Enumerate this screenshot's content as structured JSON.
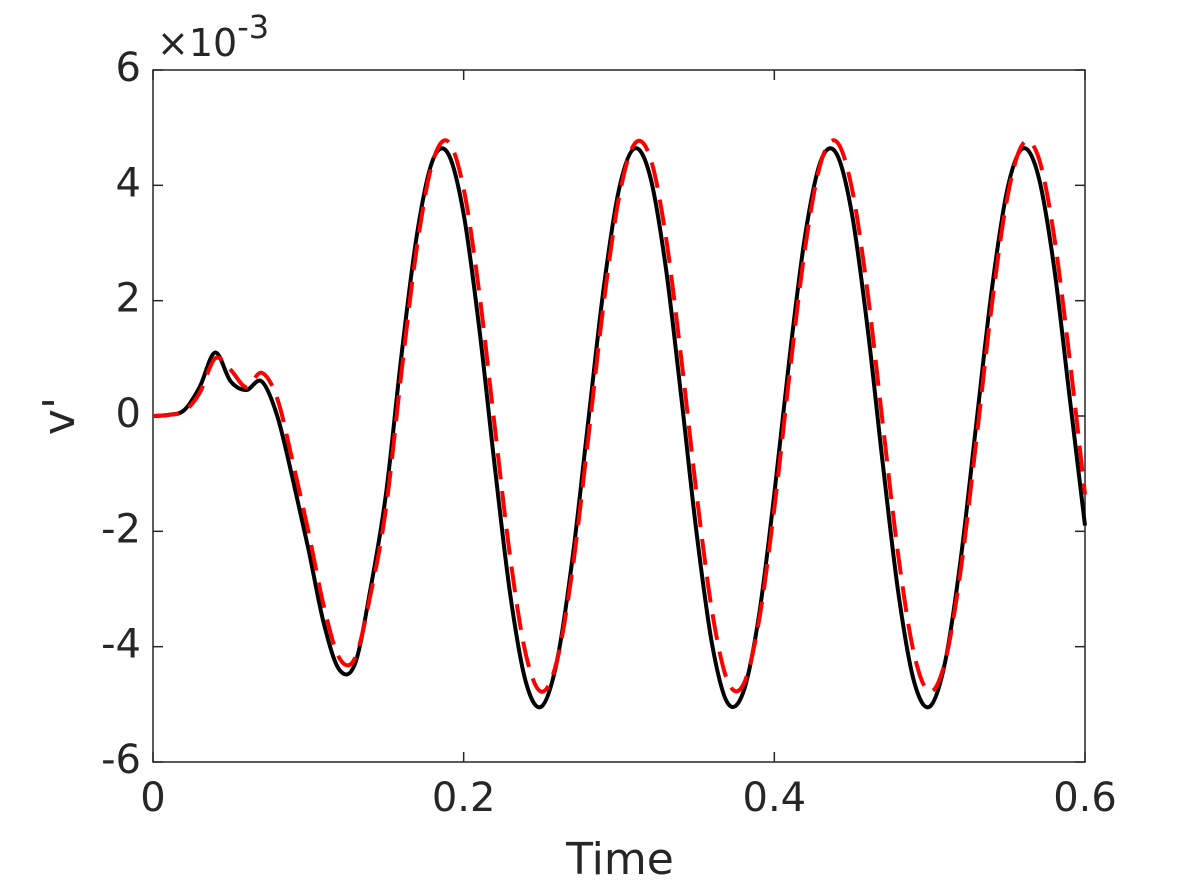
{
  "chart_data": {
    "type": "line",
    "x_label": "Time",
    "y_label": "v'",
    "y_multiplier": "×10",
    "y_exponent": "-3",
    "x": [
      0,
      0.01,
      0.02,
      0.03,
      0.04,
      0.05,
      0.06,
      0.07,
      0.08,
      0.09,
      0.1,
      0.11,
      0.12,
      0.13,
      0.14,
      0.15,
      0.16,
      0.17,
      0.18,
      0.19,
      0.2,
      0.21,
      0.22,
      0.23,
      0.24,
      0.25,
      0.26,
      0.27,
      0.28,
      0.29,
      0.3,
      0.31,
      0.32,
      0.33,
      0.34,
      0.35,
      0.36,
      0.37,
      0.38,
      0.39,
      0.4,
      0.41,
      0.42,
      0.43,
      0.44,
      0.45,
      0.46,
      0.47,
      0.48,
      0.49,
      0.5,
      0.51,
      0.52,
      0.53,
      0.54,
      0.55,
      0.56,
      0.57,
      0.58,
      0.59,
      0.6
    ],
    "series": [
      {
        "color": "#000000",
        "dash": false,
        "values": [
          0,
          0.02,
          0.1,
          0.5,
          1.1,
          0.6,
          0.45,
          0.6,
          0.0,
          -1.1,
          -2.3,
          -3.6,
          -4.4,
          -4.3,
          -3.0,
          -1.35,
          1.06,
          3.16,
          4.43,
          4.55,
          3.5,
          1.53,
          -0.87,
          -3.1,
          -4.61,
          -5.04,
          -4.26,
          -2.48,
          -0.14,
          2.19,
          3.93,
          4.64,
          4.16,
          2.6,
          0.35,
          -2.04,
          -3.97,
          -4.98,
          -4.79,
          -3.48,
          -1.35,
          1.06,
          3.16,
          4.43,
          4.55,
          3.5,
          1.53,
          -0.87,
          -3.1,
          -4.61,
          -5.04,
          -4.26,
          -2.48,
          -0.14,
          2.19,
          3.93,
          4.64,
          4.16,
          2.6,
          0.35,
          -1.9
        ]
      },
      {
        "color": "#ff0000",
        "dash": true,
        "values": [
          0,
          0.02,
          0.08,
          0.4,
          1.0,
          0.8,
          0.5,
          0.75,
          0.3,
          -0.8,
          -2.0,
          -3.3,
          -4.2,
          -4.2,
          -3.1,
          -1.6,
          0.77,
          2.95,
          4.4,
          4.76,
          3.94,
          2.15,
          -0.18,
          -2.46,
          -4.13,
          -4.78,
          -4.25,
          -2.67,
          -0.43,
          1.92,
          3.79,
          4.72,
          4.49,
          3.14,
          1.02,
          -1.36,
          -3.4,
          -4.6,
          -4.66,
          -3.57,
          -1.6,
          0.77,
          2.95,
          4.4,
          4.76,
          3.94,
          2.15,
          -0.18,
          -2.46,
          -4.13,
          -4.78,
          -4.25,
          -2.67,
          -0.43,
          1.92,
          3.79,
          4.72,
          4.49,
          3.14,
          1.02,
          -1.36
        ]
      }
    ],
    "xlim": [
      0,
      0.6
    ],
    "xticks": [
      0,
      0.2,
      0.4,
      0.6
    ],
    "ylim": [
      -6,
      6
    ],
    "yticks": [
      -6,
      -4,
      -2,
      0,
      2,
      4,
      6
    ]
  }
}
